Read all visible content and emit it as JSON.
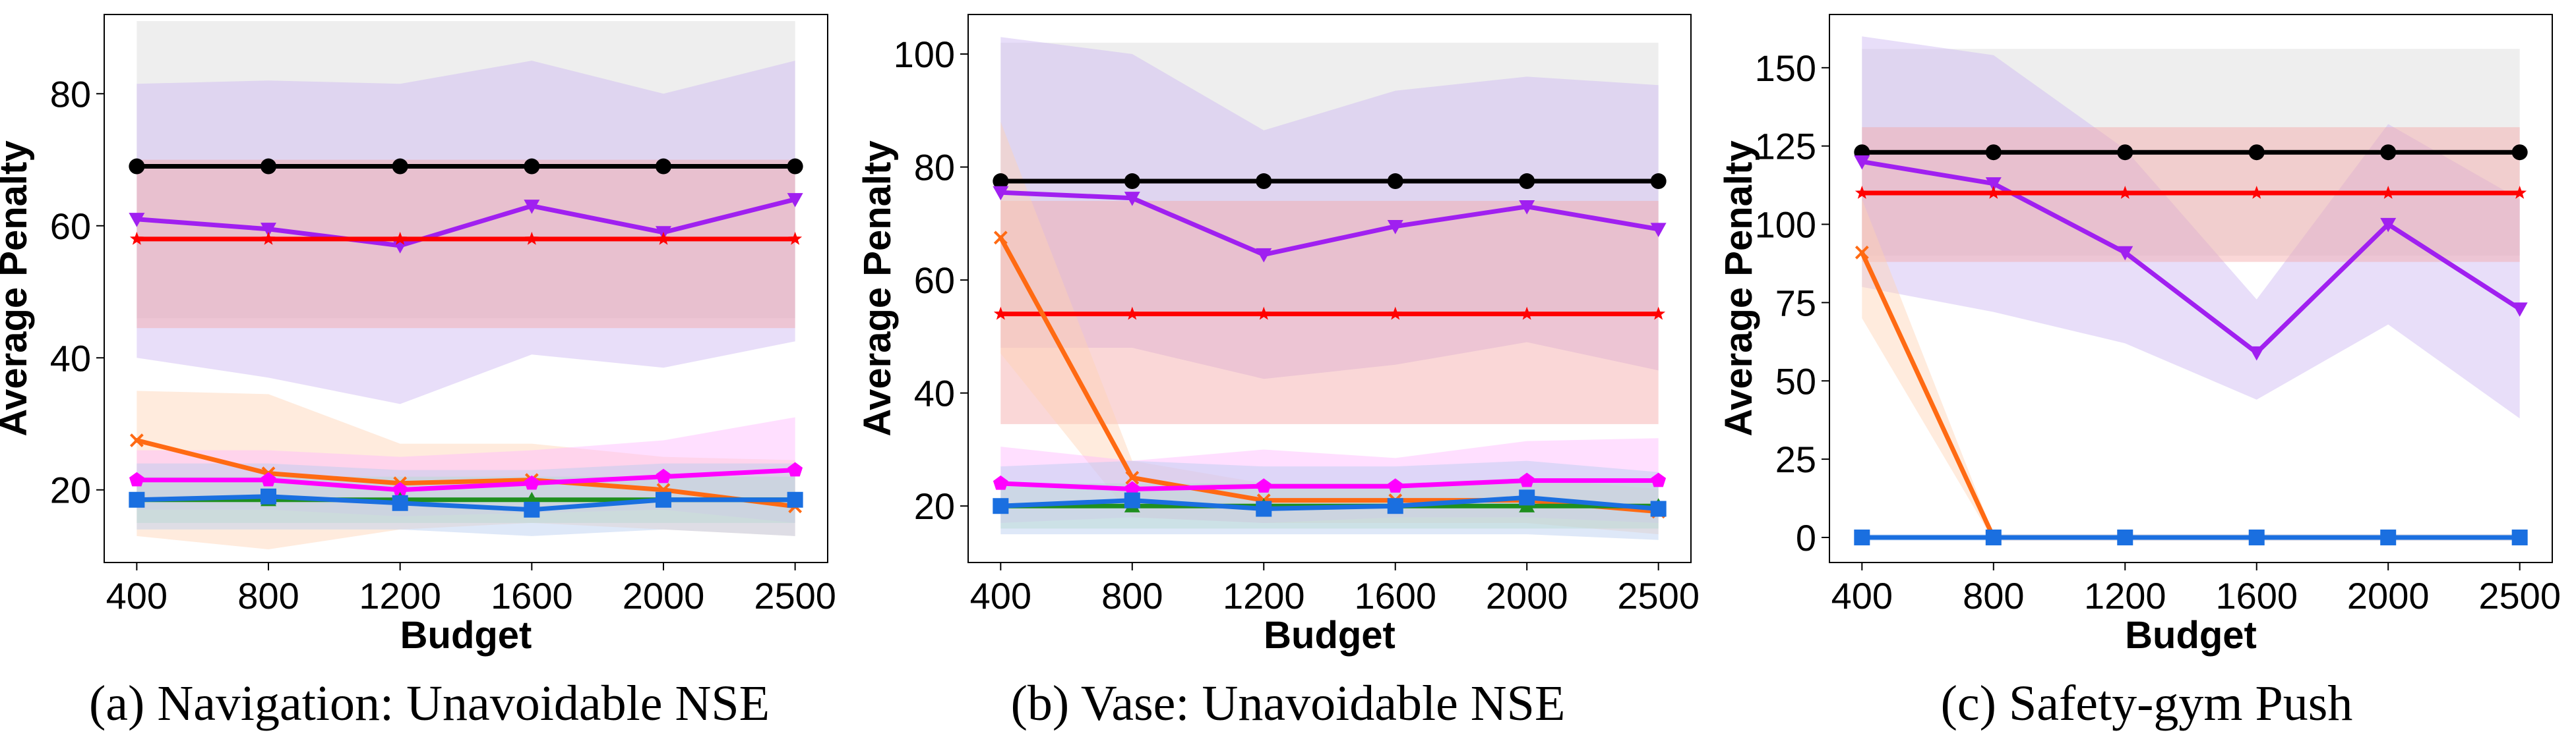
{
  "chart_data": [
    {
      "type": "line",
      "caption": "(a) Navigation: Unavoidable NSE",
      "xlabel": "Budget",
      "ylabel": "Average Penalty",
      "categories": [
        "400",
        "800",
        "1200",
        "1600",
        "2000",
        "2500"
      ],
      "ylim": [
        9,
        92
      ],
      "yticks": [
        20,
        40,
        60,
        80
      ],
      "series": [
        {
          "name": "black-circle",
          "color": "#000000",
          "marker": "circle",
          "values": [
            69,
            69,
            69,
            69,
            69,
            69
          ],
          "band": [
            [
              91,
              46
            ],
            [
              91,
              46
            ],
            [
              91,
              46
            ],
            [
              91,
              46
            ],
            [
              91,
              46
            ],
            [
              91,
              46
            ]
          ],
          "band_color": "#d9d9d9"
        },
        {
          "name": "purple-triangle-down",
          "color": "#a020f0",
          "marker": "triangle-down",
          "values": [
            61,
            59.5,
            57,
            63,
            59,
            64
          ],
          "band": [
            [
              81.5,
              40
            ],
            [
              82,
              37
            ],
            [
              81.5,
              33
            ],
            [
              85,
              40.5
            ],
            [
              80,
              38.5
            ],
            [
              85,
              42.5
            ]
          ],
          "band_color": "#cdb6f2"
        },
        {
          "name": "red-star",
          "color": "#ff0000",
          "marker": "star",
          "values": [
            58,
            58,
            58,
            58,
            58,
            58
          ],
          "band": [
            [
              70,
              44.5
            ],
            [
              70,
              44.5
            ],
            [
              70,
              44.5
            ],
            [
              70,
              44.5
            ],
            [
              70,
              44.5
            ],
            [
              70,
              44.5
            ]
          ],
          "band_color": "#f4a6a6"
        },
        {
          "name": "orange-x",
          "color": "#ff6a13",
          "marker": "x",
          "values": [
            27.5,
            22.5,
            21,
            21.5,
            20,
            17.5
          ],
          "band": [
            [
              35,
              13
            ],
            [
              34.5,
              11
            ],
            [
              27,
              14
            ],
            [
              27,
              15
            ],
            [
              25,
              14
            ],
            [
              24.5,
              13
            ]
          ],
          "band_color": "#ffd2b3"
        },
        {
          "name": "magenta-pentagon",
          "color": "#ff00ff",
          "marker": "pentagon",
          "values": [
            21.5,
            21.5,
            20,
            21,
            22,
            23
          ],
          "band": [
            [
              26,
              17
            ],
            [
              26,
              17
            ],
            [
              25,
              16
            ],
            [
              26,
              16.5
            ],
            [
              27.5,
              17
            ],
            [
              31,
              15
            ]
          ],
          "band_color": "#ffb8ff"
        },
        {
          "name": "green-triangle-up",
          "color": "#1f8f1f",
          "marker": "triangle-up",
          "values": [
            18.5,
            18.5,
            18.5,
            18.5,
            18.5,
            18.5
          ],
          "band": [
            [
              22,
              15
            ],
            [
              22,
              15
            ],
            [
              22,
              15
            ],
            [
              22,
              15
            ],
            [
              22,
              15
            ],
            [
              22,
              15
            ]
          ],
          "band_color": "#b7e3b7"
        },
        {
          "name": "blue-square",
          "color": "#1a6fe0",
          "marker": "square",
          "values": [
            18.5,
            19,
            18,
            17,
            18.5,
            18.5
          ],
          "band": [
            [
              24,
              14
            ],
            [
              24,
              14
            ],
            [
              23,
              14
            ],
            [
              23,
              13
            ],
            [
              24,
              14
            ],
            [
              24,
              13
            ]
          ],
          "band_color": "#b6ccf0"
        }
      ]
    },
    {
      "type": "line",
      "caption": "(b) Vase: Unavoidable NSE",
      "xlabel": "Budget",
      "ylabel": "Average Penalty",
      "categories": [
        "400",
        "800",
        "1200",
        "1600",
        "2000",
        "2500"
      ],
      "ylim": [
        10,
        107
      ],
      "yticks": [
        20,
        40,
        60,
        80,
        100
      ],
      "series": [
        {
          "name": "black-circle",
          "color": "#000000",
          "marker": "circle",
          "values": [
            77.5,
            77.5,
            77.5,
            77.5,
            77.5,
            77.5
          ],
          "band": [
            [
              102,
              54
            ],
            [
              102,
              54
            ],
            [
              102,
              54
            ],
            [
              102,
              54
            ],
            [
              102,
              54
            ],
            [
              102,
              54
            ]
          ],
          "band_color": "#d9d9d9"
        },
        {
          "name": "purple-triangle-down",
          "color": "#a020f0",
          "marker": "triangle-down",
          "values": [
            75.5,
            74.5,
            64.5,
            69.5,
            73,
            69
          ],
          "band": [
            [
              103,
              48
            ],
            [
              100,
              48
            ],
            [
              86.5,
              42.5
            ],
            [
              93.5,
              45
            ],
            [
              96,
              49
            ],
            [
              94.5,
              44
            ]
          ],
          "band_color": "#cdb6f2"
        },
        {
          "name": "red-star",
          "color": "#ff0000",
          "marker": "star",
          "values": [
            54,
            54,
            54,
            54,
            54,
            54
          ],
          "band": [
            [
              74,
              34.5
            ],
            [
              74,
              34.5
            ],
            [
              74,
              34.5
            ],
            [
              74,
              34.5
            ],
            [
              74,
              34.5
            ],
            [
              74,
              34.5
            ]
          ],
          "band_color": "#f4a6a6"
        },
        {
          "name": "orange-x",
          "color": "#ff6a13",
          "marker": "x",
          "values": [
            67.5,
            25,
            21,
            21,
            21,
            19
          ],
          "band": [
            [
              88,
              47
            ],
            [
              28,
              18
            ],
            [
              24,
              17
            ],
            [
              24,
              17
            ],
            [
              25,
              17
            ],
            [
              23,
              15
            ]
          ],
          "band_color": "#ffd2b3"
        },
        {
          "name": "magenta-pentagon",
          "color": "#ff00ff",
          "marker": "pentagon",
          "values": [
            24,
            23,
            23.5,
            23.5,
            24.5,
            24.5
          ],
          "band": [
            [
              30.5,
              17
            ],
            [
              28,
              18
            ],
            [
              30,
              17
            ],
            [
              28.5,
              18
            ],
            [
              31.5,
              18
            ],
            [
              32,
              17
            ]
          ],
          "band_color": "#ffb8ff"
        },
        {
          "name": "green-triangle-up",
          "color": "#1f8f1f",
          "marker": "triangle-up",
          "values": [
            20,
            20,
            20,
            20,
            20,
            20
          ],
          "band": [
            [
              24,
              16
            ],
            [
              24,
              16
            ],
            [
              24,
              16
            ],
            [
              24,
              16
            ],
            [
              24,
              16
            ],
            [
              24,
              16
            ]
          ],
          "band_color": "#b7e3b7"
        },
        {
          "name": "blue-square",
          "color": "#1a6fe0",
          "marker": "square",
          "values": [
            20,
            21,
            19.5,
            20,
            21.5,
            19.5
          ],
          "band": [
            [
              27,
              15
            ],
            [
              28,
              15
            ],
            [
              27,
              15
            ],
            [
              27,
              15
            ],
            [
              28,
              15
            ],
            [
              26,
              14
            ]
          ],
          "band_color": "#b6ccf0"
        }
      ]
    },
    {
      "type": "line",
      "caption": "(c) Safety-gym Push",
      "xlabel": "Budget",
      "ylabel": "Average Penalty",
      "categories": [
        "400",
        "800",
        "1200",
        "1600",
        "2000",
        "2500"
      ],
      "ylim": [
        -8,
        167
      ],
      "yticks": [
        0,
        25,
        50,
        75,
        100,
        125,
        150
      ],
      "series": [
        {
          "name": "black-circle",
          "color": "#000000",
          "marker": "circle",
          "values": [
            123,
            123,
            123,
            123,
            123,
            123
          ],
          "band": [
            [
              156,
              90
            ],
            [
              156,
              90
            ],
            [
              156,
              90
            ],
            [
              156,
              90
            ],
            [
              156,
              90
            ],
            [
              156,
              90
            ]
          ],
          "band_color": "#d9d9d9"
        },
        {
          "name": "purple-triangle-down",
          "color": "#a020f0",
          "marker": "triangle-down",
          "values": [
            120,
            113,
            91,
            59,
            100,
            73
          ],
          "band": [
            [
              160,
              80
            ],
            [
              154,
              72
            ],
            [
              124,
              62
            ],
            [
              76,
              44
            ],
            [
              132,
              68
            ],
            [
              108,
              38
            ]
          ],
          "band_color": "#cdb6f2"
        },
        {
          "name": "red-star",
          "color": "#ff0000",
          "marker": "star",
          "values": [
            110,
            110,
            110,
            110,
            110,
            110
          ],
          "band": [
            [
              131,
              88
            ],
            [
              131,
              88
            ],
            [
              131,
              88
            ],
            [
              131,
              88
            ],
            [
              131,
              88
            ],
            [
              131,
              88
            ]
          ],
          "band_color": "#f4a6a6"
        },
        {
          "name": "orange-x",
          "color": "#ff6a13",
          "marker": "x",
          "values": [
            91,
            0,
            0,
            0,
            0,
            0
          ],
          "band": [
            [
              108,
              70
            ],
            [
              1,
              -1
            ],
            [
              1,
              -1
            ],
            [
              1,
              -1
            ],
            [
              1,
              -1
            ],
            [
              1,
              -1
            ]
          ],
          "band_color": "#ffd2b3"
        },
        {
          "name": "blue-square",
          "color": "#1a6fe0",
          "marker": "square",
          "values": [
            0,
            0,
            0,
            0,
            0,
            0
          ],
          "band": [
            [
              1,
              -1
            ],
            [
              1,
              -1
            ],
            [
              1,
              -1
            ],
            [
              1,
              -1
            ],
            [
              1,
              -1
            ],
            [
              1,
              -1
            ]
          ],
          "band_color": "#b6ccf0"
        }
      ]
    }
  ]
}
